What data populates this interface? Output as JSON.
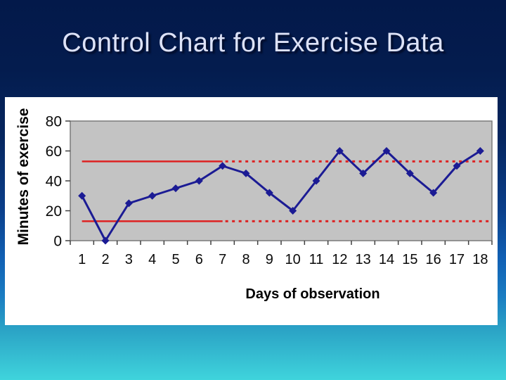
{
  "slide": {
    "title": "Control Chart for Exercise Data",
    "colors": {
      "title_text": "#dde2f7",
      "background_top": "#03194a",
      "background_bottom": "#3fd4dc",
      "panel": "#ffffff"
    }
  },
  "chart_data": {
    "type": "line",
    "title": "",
    "xlabel": "Days of observation",
    "ylabel": "Minutes of exercise",
    "categories": [
      1,
      2,
      3,
      4,
      5,
      6,
      7,
      8,
      9,
      10,
      11,
      12,
      13,
      14,
      15,
      16,
      17,
      18
    ],
    "series": [
      {
        "name": "minutes-of-exercise",
        "values": [
          30,
          0,
          25,
          30,
          35,
          40,
          50,
          45,
          32,
          20,
          40,
          60,
          45,
          60,
          45,
          32,
          50,
          60
        ],
        "color": "#1b1b94",
        "marker": "diamond"
      }
    ],
    "control_limits": {
      "upper": 53,
      "lower": 13,
      "color": "#dd2222",
      "solid_through_day": 7,
      "dotted_after_day": true
    },
    "ylim": [
      0,
      80
    ],
    "yticks": [
      0,
      20,
      40,
      60,
      80
    ],
    "plot_background": "#c3c3c3",
    "plot_border": "#7a7a7a",
    "tick_color": "#404040",
    "label_color": "#0a0a0a",
    "grid": false,
    "legend": "none"
  }
}
